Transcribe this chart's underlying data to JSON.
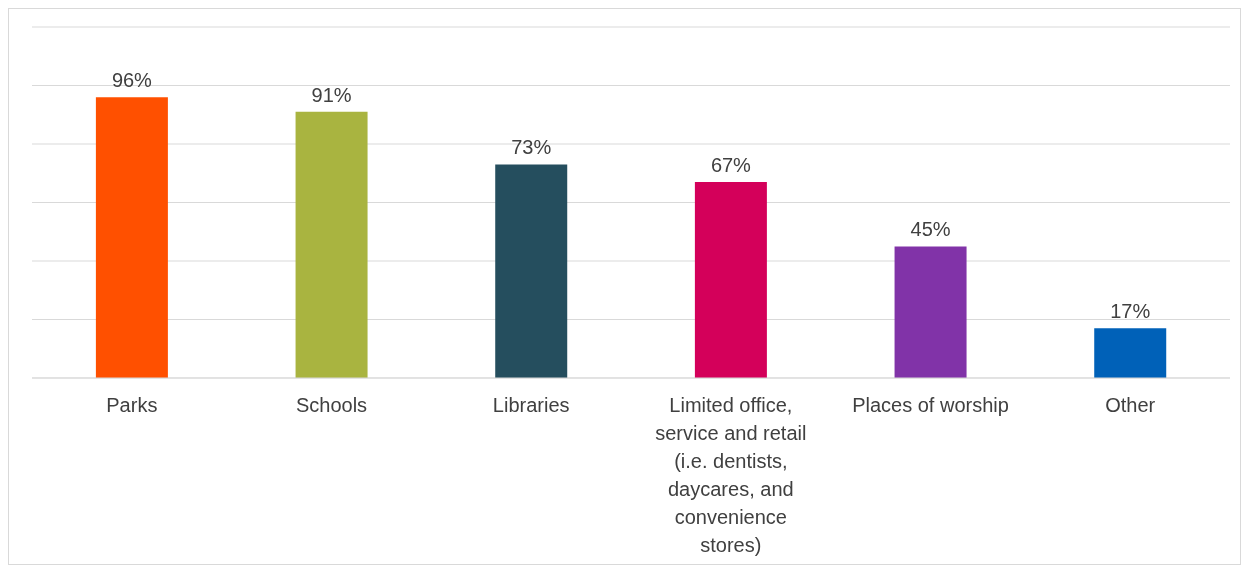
{
  "chart_data": {
    "type": "bar",
    "categories": [
      "Parks",
      "Schools",
      "Libraries",
      "Limited office, service and retail (i.e. dentists, daycares, and convenience stores)",
      "Places of worship",
      "Other"
    ],
    "values": [
      96,
      91,
      73,
      67,
      45,
      17
    ],
    "colors": [
      "#ff5000",
      "#a9b440",
      "#254e5e",
      "#d4005a",
      "#8133a8",
      "#0061b8"
    ],
    "value_labels": [
      "96%",
      "91%",
      "73%",
      "67%",
      "45%",
      "17%"
    ],
    "ylim": [
      0,
      120
    ],
    "grid": "y",
    "tick_labels": "x",
    "legend": false
  }
}
